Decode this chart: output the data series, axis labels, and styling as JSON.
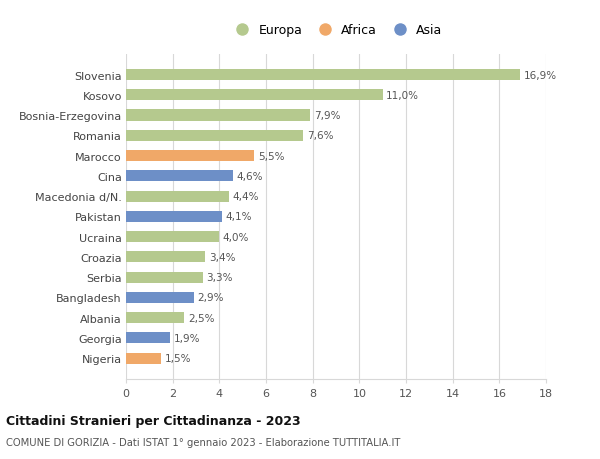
{
  "categories": [
    "Slovenia",
    "Kosovo",
    "Bosnia-Erzegovina",
    "Romania",
    "Marocco",
    "Cina",
    "Macedonia d/N.",
    "Pakistan",
    "Ucraina",
    "Croazia",
    "Serbia",
    "Bangladesh",
    "Albania",
    "Georgia",
    "Nigeria"
  ],
  "values": [
    16.9,
    11.0,
    7.9,
    7.6,
    5.5,
    4.6,
    4.4,
    4.1,
    4.0,
    3.4,
    3.3,
    2.9,
    2.5,
    1.9,
    1.5
  ],
  "labels": [
    "16,9%",
    "11,0%",
    "7,9%",
    "7,6%",
    "5,5%",
    "4,6%",
    "4,4%",
    "4,1%",
    "4,0%",
    "3,4%",
    "3,3%",
    "2,9%",
    "2,5%",
    "1,9%",
    "1,5%"
  ],
  "continent": [
    "Europa",
    "Europa",
    "Europa",
    "Europa",
    "Africa",
    "Asia",
    "Europa",
    "Asia",
    "Europa",
    "Europa",
    "Europa",
    "Asia",
    "Europa",
    "Asia",
    "Africa"
  ],
  "colors": {
    "Europa": "#b5c98e",
    "Africa": "#f0a868",
    "Asia": "#6d8fc7"
  },
  "title": "Cittadini Stranieri per Cittadinanza - 2023",
  "subtitle": "COMUNE DI GORIZIA - Dati ISTAT 1° gennaio 2023 - Elaborazione TUTTITALIA.IT",
  "xlim": [
    0,
    18
  ],
  "xticks": [
    0,
    2,
    4,
    6,
    8,
    10,
    12,
    14,
    16,
    18
  ],
  "background_color": "#ffffff",
  "grid_color": "#d8d8d8",
  "bar_height": 0.55
}
